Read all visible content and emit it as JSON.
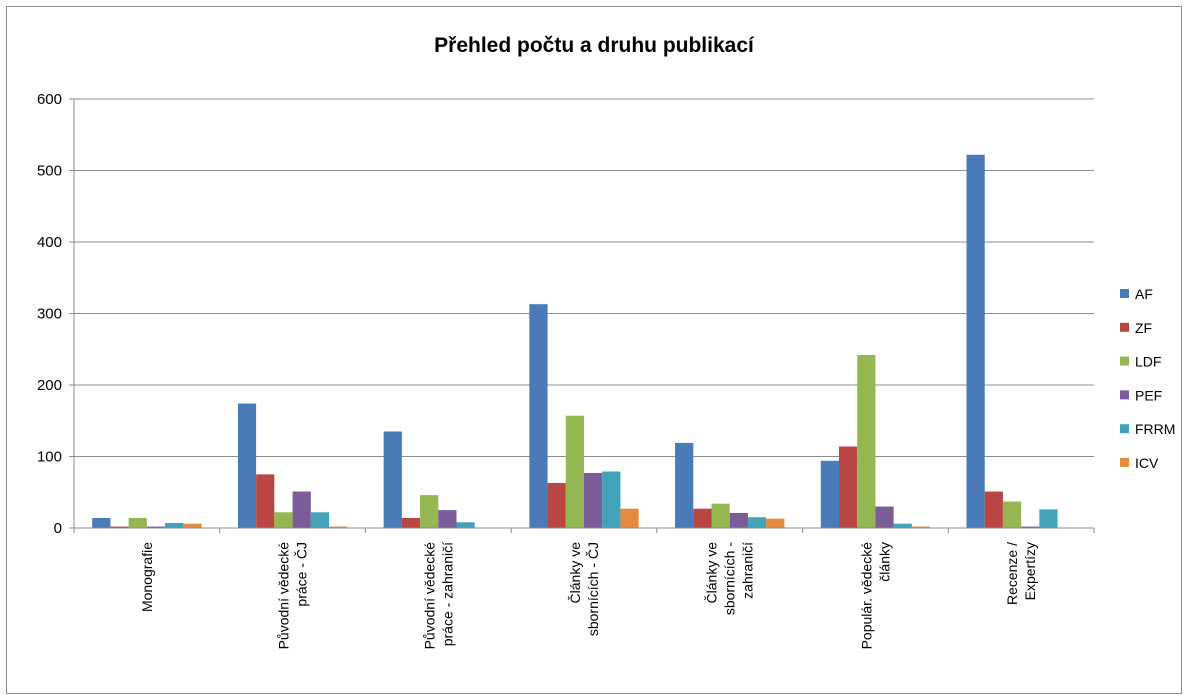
{
  "chart_data": {
    "type": "bar",
    "title": "Přehled počtu a druhu publikací",
    "xlabel": "",
    "ylabel": "",
    "ylim": [
      0,
      600
    ],
    "yticks": [
      0,
      100,
      200,
      300,
      400,
      500,
      600
    ],
    "grid": true,
    "legend_position": "right",
    "categories": [
      [
        "Monografie"
      ],
      [
        "Původní vědecké",
        "práce - ČJ"
      ],
      [
        "Původní vědecké",
        "práce - zahraničí"
      ],
      [
        "Články ve",
        "sbornících - ČJ"
      ],
      [
        "Články ve",
        "sbornících -",
        "zahraničí"
      ],
      [
        "Populár. vědecké",
        "články"
      ],
      [
        "Recenze /",
        "Expertízy"
      ]
    ],
    "series": [
      {
        "name": "AF",
        "color": "#4a7ab7",
        "values": [
          14,
          174,
          135,
          313,
          119,
          94,
          522
        ]
      },
      {
        "name": "ZF",
        "color": "#b84744",
        "values": [
          2,
          75,
          14,
          63,
          27,
          114,
          51
        ]
      },
      {
        "name": "LDF",
        "color": "#95b752",
        "values": [
          14,
          22,
          46,
          157,
          34,
          242,
          37
        ]
      },
      {
        "name": "PEF",
        "color": "#7a5c99",
        "values": [
          2,
          51,
          25,
          77,
          21,
          30,
          2
        ]
      },
      {
        "name": "FRRM",
        "color": "#43a1ba",
        "values": [
          7,
          22,
          8,
          79,
          15,
          6,
          26
        ]
      },
      {
        "name": "ICV",
        "color": "#e48b3d",
        "values": [
          6,
          2,
          0,
          27,
          13,
          2,
          0
        ]
      }
    ]
  }
}
